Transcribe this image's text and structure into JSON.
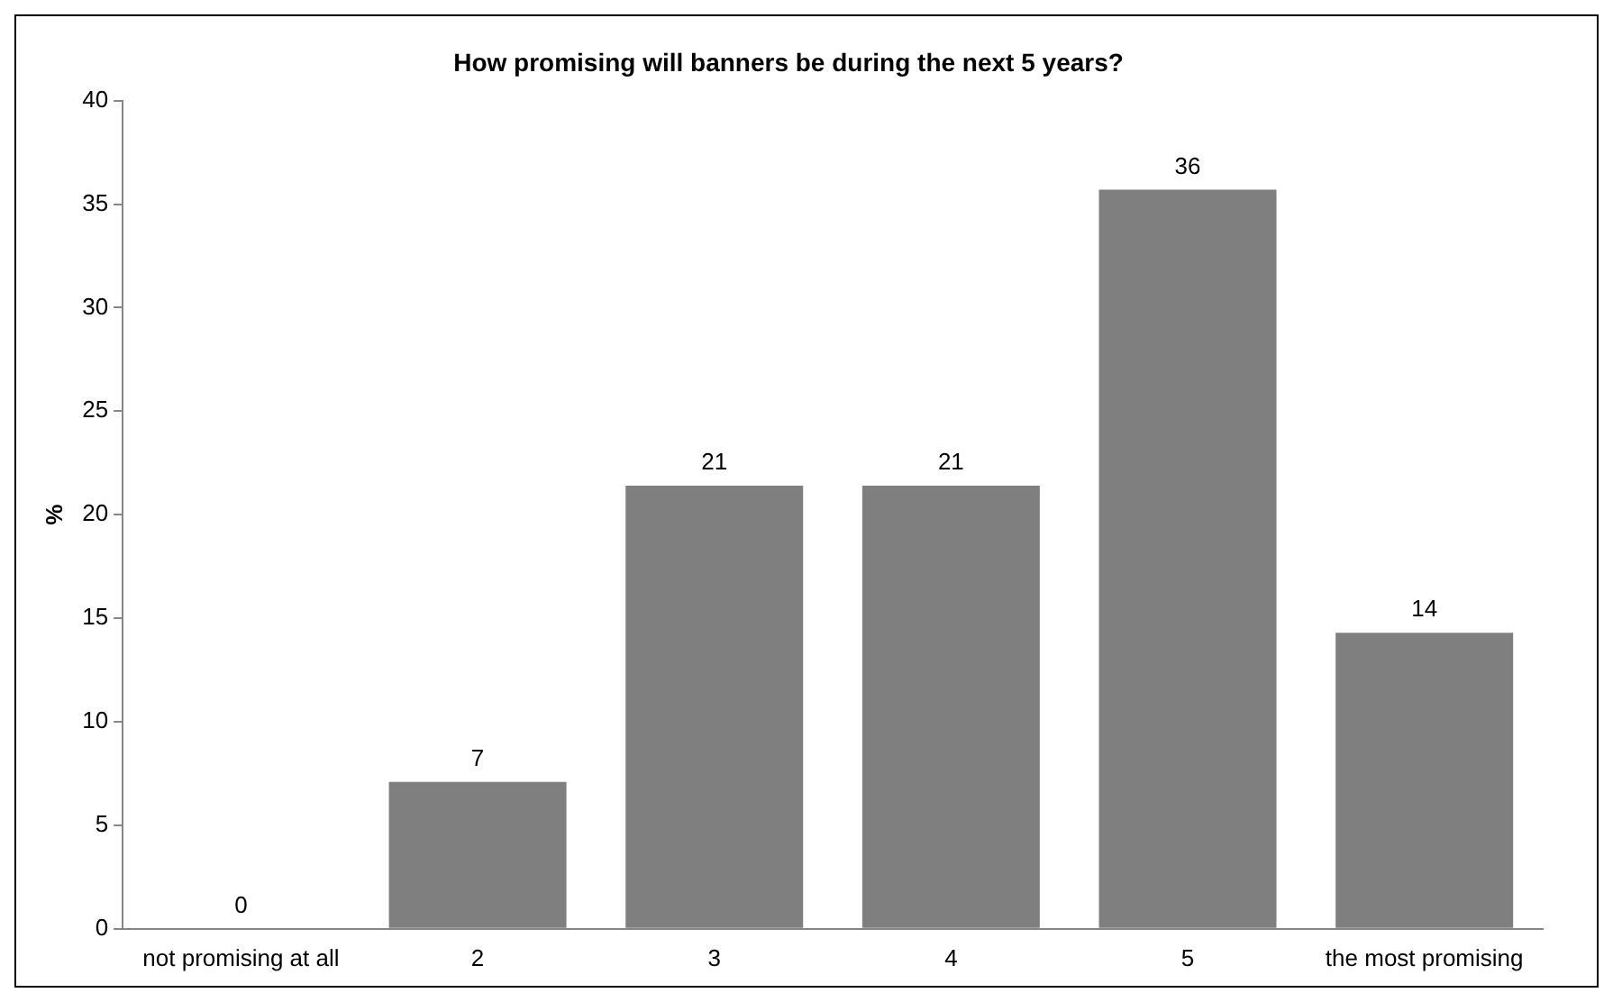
{
  "chart_data": {
    "type": "bar",
    "title": "How promising will banners be during the next 5 years?",
    "ylabel": "%",
    "categories": [
      "not promising at all",
      "2",
      "3",
      "4",
      "5",
      "the most promising"
    ],
    "values": [
      0,
      7.1,
      21.4,
      21.4,
      35.7,
      14.3
    ],
    "value_labels": [
      "0",
      "7",
      "21",
      "21",
      "36",
      "14"
    ],
    "color": "#7f7f7f",
    "ylim": [
      0,
      40
    ],
    "yticks": [
      0,
      5,
      10,
      15,
      20,
      25,
      30,
      35,
      40
    ],
    "grid": false,
    "legend": false
  }
}
